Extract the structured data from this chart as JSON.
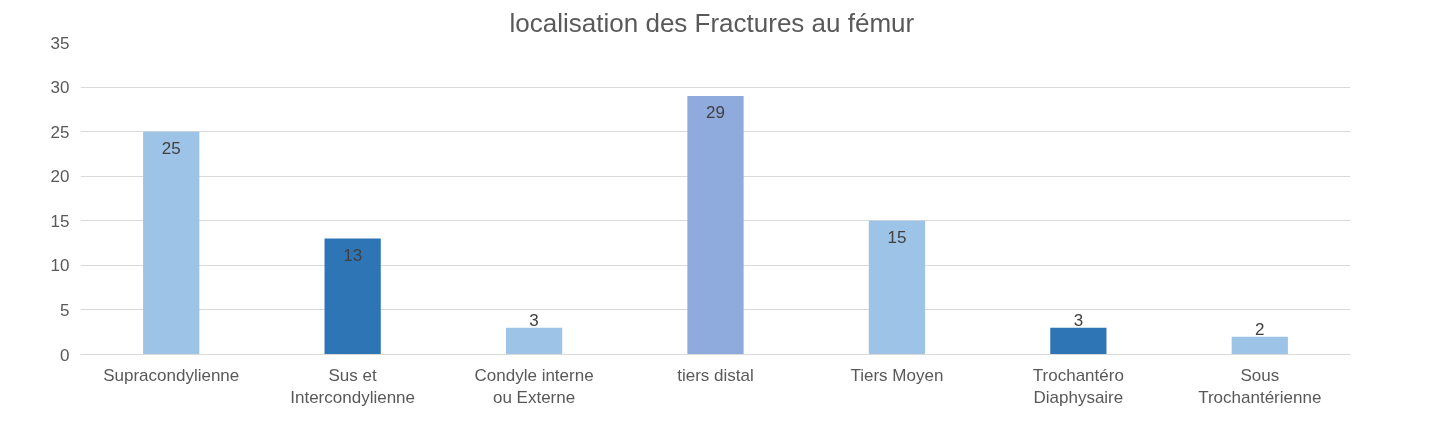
{
  "chart_data": {
    "type": "bar",
    "title": "localisation des Fractures au  fémur",
    "categories": [
      "Supracondylienne",
      "Sus et Intercondylienne",
      "Condyle interne ou Externe",
      "tiers distal",
      "Tiers Moyen",
      "Trochantéro Diaphysaire",
      "Sous Trochantérienne"
    ],
    "values": [
      25,
      13,
      3,
      29,
      15,
      3,
      2
    ],
    "colors": [
      "#9dc3e6",
      "#2e75b6",
      "#9dc3e6",
      "#8faadc",
      "#9dc3e6",
      "#2e75b6",
      "#9dc3e6"
    ],
    "ylim": [
      0,
      35
    ],
    "yticks": [
      0,
      5,
      10,
      15,
      20,
      25,
      30,
      35
    ],
    "grid": "y",
    "data_labels": true
  }
}
